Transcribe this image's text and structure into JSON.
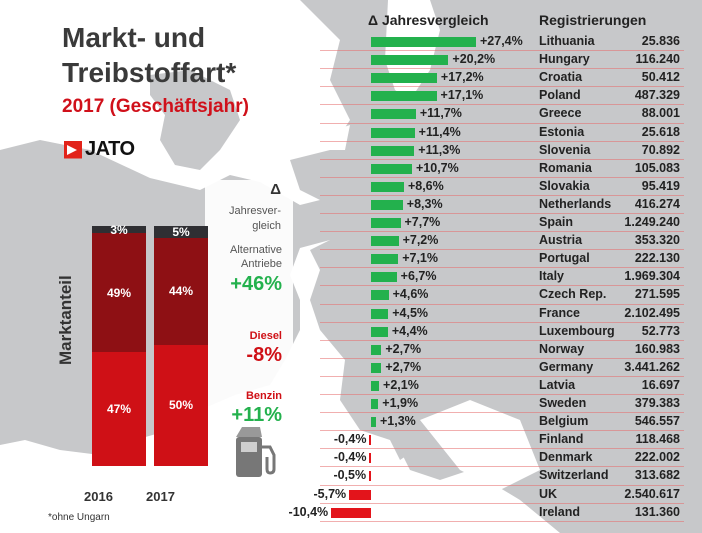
{
  "title_line1": "Markt- und",
  "title_line2": "Treibstoffart*",
  "subtitle": "2017 (Geschäftsjahr)",
  "logo": "JATO",
  "footnote": "*ohne Ungarn",
  "colors": {
    "positive": "#23b14d",
    "negative": "#e3141b",
    "benzin": "#cf1016",
    "diesel": "#8e1014",
    "alternative": "#2f2f33"
  },
  "left_panel": {
    "delta_symbol": "Δ",
    "delta_label_1": "Jahresver-",
    "delta_label_2": "gleich",
    "y_axis_label": "Marktanteil",
    "categories": [
      {
        "label_1": "Alternative",
        "label_2": "Antriebe",
        "change": "+46%"
      },
      {
        "label_1": "Diesel",
        "label_2": "",
        "change": "-8%"
      },
      {
        "label_1": "Benzin",
        "label_2": "",
        "change": "+11%"
      }
    ]
  },
  "right_panel": {
    "header_change": "Δ Jahresvergleich",
    "header_reg": "Registrierungen"
  },
  "chart_data": [
    {
      "type": "bar",
      "title": "Markt- und Treibstoffart* 2017 (Geschäftsjahr)",
      "xlabel": "Jahresvergleich",
      "ylabel": "",
      "categories": [
        "Lithuania",
        "Hungary",
        "Croatia",
        "Poland",
        "Greece",
        "Estonia",
        "Slovenia",
        "Romania",
        "Slovakia",
        "Netherlands",
        "Spain",
        "Austria",
        "Portugal",
        "Italy",
        "Czech Rep.",
        "France",
        "Luxembourg",
        "Norway",
        "Germany",
        "Latvia",
        "Sweden",
        "Belgium",
        "Finland",
        "Denmark",
        "Switzerland",
        "UK",
        "Ireland"
      ],
      "values": [
        27.4,
        20.2,
        17.2,
        17.1,
        11.7,
        11.4,
        11.3,
        10.7,
        8.6,
        8.3,
        7.7,
        7.2,
        7.1,
        6.7,
        4.6,
        4.5,
        4.4,
        2.7,
        2.7,
        2.1,
        1.9,
        1.3,
        -0.4,
        -0.4,
        -0.5,
        -5.7,
        -10.4
      ],
      "labels": [
        "+27,4%",
        "+20,2%",
        "+17,2%",
        "+17,1%",
        "+11,7%",
        "+11,4%",
        "+11,3%",
        "+10,7%",
        "+8,6%",
        "+8,3%",
        "+7,7%",
        "+7,2%",
        "+7,1%",
        "+6,7%",
        "+4,6%",
        "+4,5%",
        "+4,4%",
        "+2,7%",
        "+2,7%",
        "+2,1%",
        "+1,9%",
        "+1,3%",
        "-0,4%",
        "-0,4%",
        "-0,5%",
        "-5,7%",
        "-10,4%"
      ],
      "registrations": [
        "25.836",
        "116.240",
        "50.412",
        "487.329",
        "88.001",
        "25.618",
        "70.892",
        "105.083",
        "95.419",
        "416.274",
        "1.249.240",
        "353.320",
        "222.130",
        "1.969.304",
        "271.595",
        "2.102.495",
        "52.773",
        "160.983",
        "3.441.262",
        "16.697",
        "379.383",
        "546.557",
        "118.468",
        "222.002",
        "313.682",
        "2.540.617",
        "131.360"
      ],
      "xlim": [
        -10.4,
        27.4
      ]
    },
    {
      "type": "bar",
      "stacked": true,
      "title": "Marktanteil",
      "ylabel": "Marktanteil",
      "categories": [
        "2016",
        "2017"
      ],
      "series": [
        {
          "name": "Benzin",
          "values": [
            47,
            50
          ],
          "labels": [
            "47%",
            "50%"
          ]
        },
        {
          "name": "Diesel",
          "values": [
            49,
            44
          ],
          "labels": [
            "49%",
            "44%"
          ]
        },
        {
          "name": "Alternative Antriebe",
          "values": [
            3,
            5
          ],
          "labels": [
            "3%",
            "5%"
          ]
        }
      ],
      "ylim": [
        0,
        100
      ]
    }
  ]
}
